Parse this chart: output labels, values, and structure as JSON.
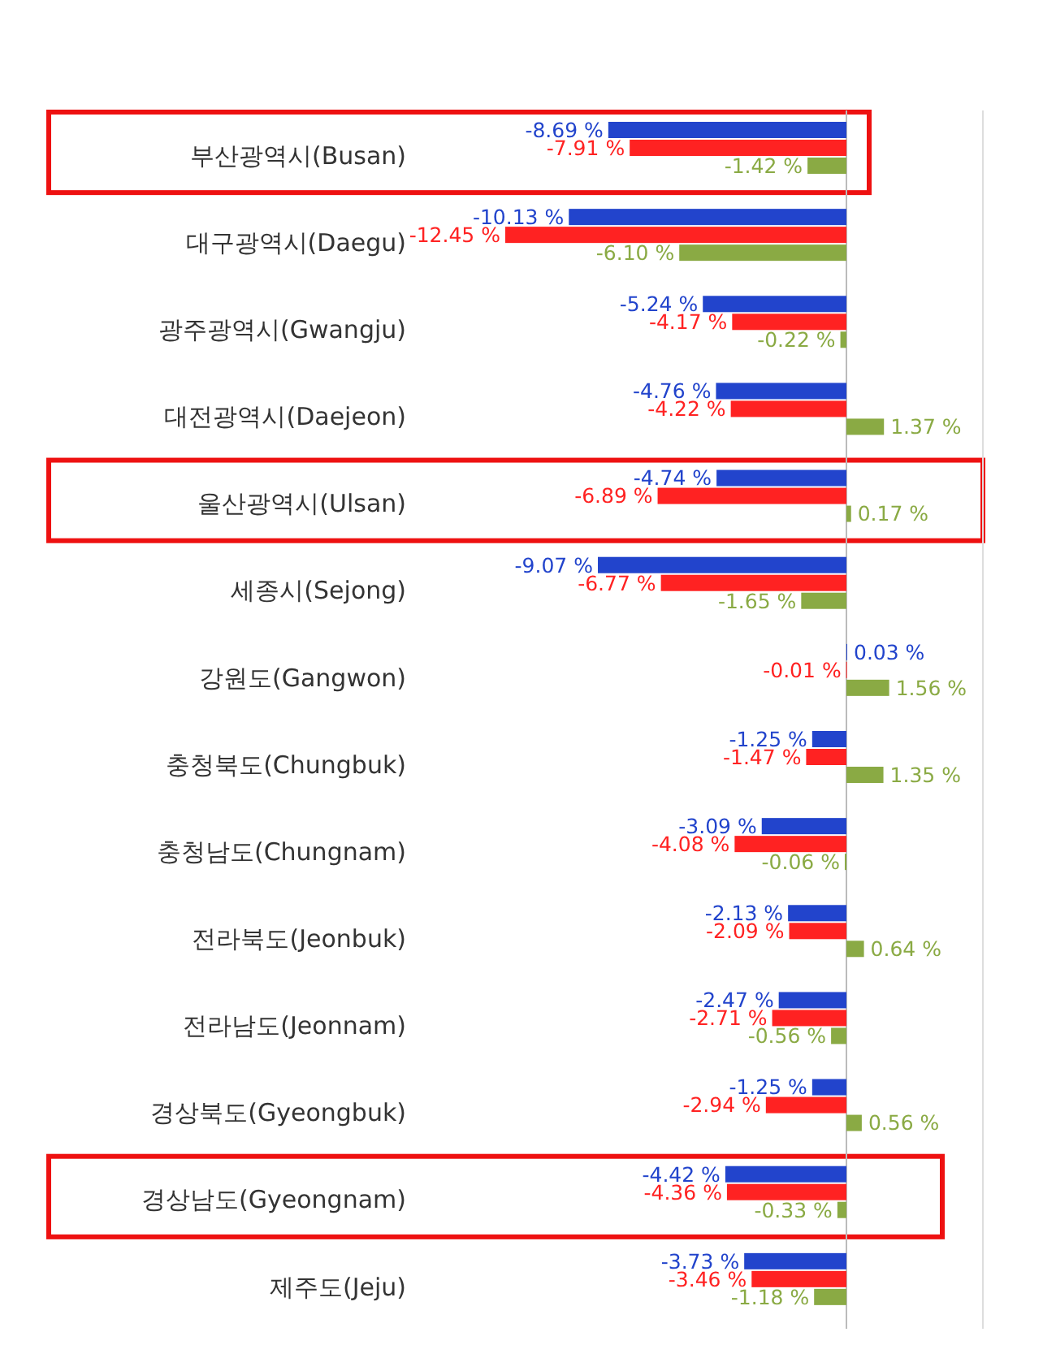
{
  "chart_data": {
    "type": "bar",
    "orientation": "horizontal",
    "categories": [
      "부산광역시(Busan)",
      "대구광역시(Daegu)",
      "광주광역시(Gwangju)",
      "대전광역시(Daejeon)",
      "울산광역시(Ulsan)",
      "세종시(Sejong)",
      "강원도(Gangwon)",
      "충청북도(Chungbuk)",
      "충청남도(Chungnam)",
      "전라북도(Jeonbuk)",
      "전라남도(Jeonnam)",
      "경상북도(Gyeongbuk)",
      "경상남도(Gyeongnam)",
      "제주도(Jeju)"
    ],
    "series": [
      {
        "color": "#2244cc",
        "values": [
          -8.69,
          -10.13,
          -5.24,
          -4.76,
          -4.74,
          -9.07,
          0.03,
          -1.25,
          -3.09,
          -2.13,
          -2.47,
          -1.25,
          -4.42,
          -3.73
        ],
        "value_labels": [
          "-8.69 %",
          "-10.13 %",
          "-5.24 %",
          "-4.76 %",
          "-4.74 %",
          "-9.07 %",
          "0.03 %",
          "-1.25 %",
          "-3.09 %",
          "-2.13 %",
          "-2.47 %",
          "-1.25 %",
          "-4.42 %",
          "-3.73 %"
        ]
      },
      {
        "color": "#ff2222",
        "values": [
          -7.91,
          -12.45,
          -4.17,
          -4.22,
          -6.89,
          -6.77,
          -0.01,
          -1.47,
          -4.08,
          -2.09,
          -2.71,
          -2.94,
          -4.36,
          -3.46
        ],
        "value_labels": [
          "-7.91 %",
          "-12.45 %",
          "-4.17 %",
          "-4.22 %",
          "-6.89 %",
          "-6.77 %",
          "-0.01 %",
          "-1.47 %",
          "-4.08 %",
          "-2.09 %",
          "-2.71 %",
          "-2.94 %",
          "-4.36 %",
          "-3.46 %"
        ]
      },
      {
        "color": "#8aaa44",
        "values": [
          -1.42,
          -6.1,
          -0.22,
          1.37,
          0.17,
          -1.65,
          1.56,
          1.35,
          -0.06,
          0.64,
          -0.56,
          0.56,
          -0.33,
          -1.18
        ],
        "value_labels": [
          "-1.42 %",
          "-6.10 %",
          "-0.22 %",
          "1.37 %",
          "0.17 %",
          "-1.65 %",
          "1.56 %",
          "1.35 %",
          "-0.06 %",
          "0.64 %",
          "-0.56 %",
          "0.56 %",
          "-0.33 %",
          "-1.18 %"
        ]
      }
    ]
  }
}
